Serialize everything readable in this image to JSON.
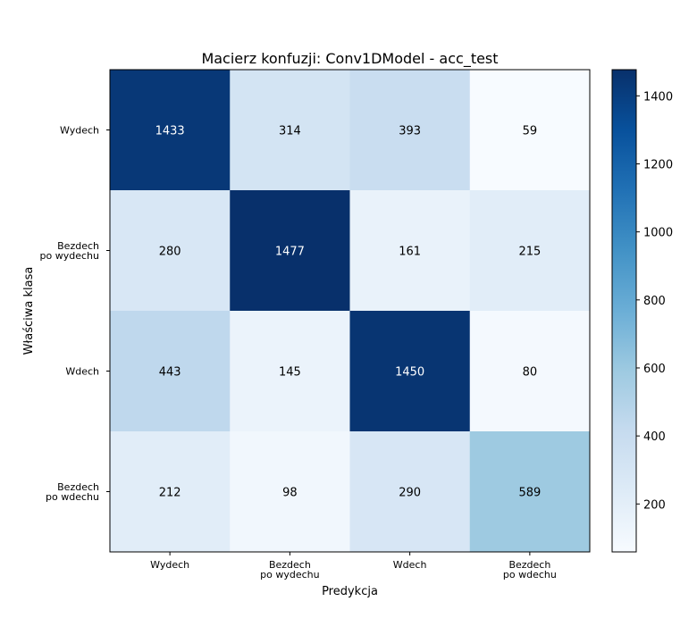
{
  "chart_data": {
    "type": "heatmap",
    "title": "Macierz konfuzji: Conv1DModel - acc_test",
    "xlabel": "Predykcja",
    "ylabel": "Właściwa klasa",
    "x_categories": [
      [
        "Wydech"
      ],
      [
        "Bezdech",
        "po wydechu"
      ],
      [
        "Wdech"
      ],
      [
        "Bezdech",
        "po wdechu"
      ]
    ],
    "y_categories": [
      [
        "Wydech"
      ],
      [
        "Bezdech",
        "po wydechu"
      ],
      [
        "Wdech"
      ],
      [
        "Bezdech",
        "po wdechu"
      ]
    ],
    "values": [
      [
        1433,
        314,
        393,
        59
      ],
      [
        280,
        1477,
        161,
        215
      ],
      [
        443,
        145,
        1450,
        80
      ],
      [
        212,
        98,
        290,
        589
      ]
    ],
    "colormap": "Blues",
    "color_range": [
      59,
      1477
    ],
    "colorbar_ticks": [
      200,
      400,
      600,
      800,
      1000,
      1200,
      1400
    ]
  }
}
